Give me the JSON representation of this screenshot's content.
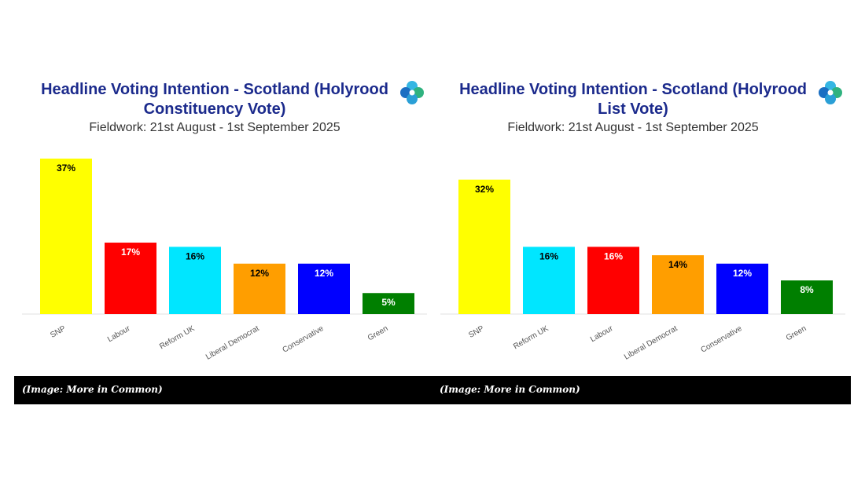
{
  "chart_data": [
    {
      "type": "bar",
      "title": "Headline Voting Intention - Scotland (Holyrood Constituency Vote)",
      "subtitle": "Fieldwork: 21st August - 1st September 2025",
      "categories": [
        "SNP",
        "Labour",
        "Reform UK",
        "Liberal Democrat",
        "Conservative",
        "Green"
      ],
      "values": [
        37,
        17,
        16,
        12,
        12,
        5
      ],
      "labels": [
        "37%",
        "17%",
        "16%",
        "12%",
        "12%",
        "5%"
      ],
      "colors": [
        "#ffff00",
        "#ff0000",
        "#00e6ff",
        "#ff9e00",
        "#0000ff",
        "#007f00"
      ],
      "label_colors": [
        "#000000",
        "#ffffff",
        "#000000",
        "#000000",
        "#ffffff",
        "#ffffff"
      ],
      "xlabel": "",
      "ylabel": "",
      "ylim": [
        0,
        37
      ]
    },
    {
      "type": "bar",
      "title": "Headline Voting Intention - Scotland (Holyrood List Vote)",
      "subtitle": "Fieldwork: 21st August - 1st September 2025",
      "categories": [
        "SNP",
        "Reform UK",
        "Labour",
        "Liberal Democrat",
        "Conservative",
        "Green"
      ],
      "values": [
        32,
        16,
        16,
        14,
        12,
        8
      ],
      "labels": [
        "32%",
        "16%",
        "16%",
        "14%",
        "12%",
        "8%"
      ],
      "colors": [
        "#ffff00",
        "#00e6ff",
        "#ff0000",
        "#ff9e00",
        "#0000ff",
        "#007f00"
      ],
      "label_colors": [
        "#000000",
        "#000000",
        "#ffffff",
        "#000000",
        "#ffffff",
        "#ffffff"
      ],
      "xlabel": "",
      "ylabel": "",
      "ylim": [
        0,
        37
      ]
    }
  ],
  "footer": {
    "caption_left": "(Image: More in Common)",
    "caption_right": "(Image: More in Common)"
  },
  "logo_icon": "more-in-common-logo-icon"
}
